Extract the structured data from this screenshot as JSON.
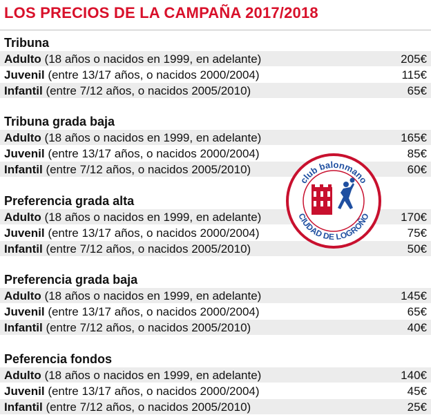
{
  "title": "LOS PRECIOS DE LA CAMPAÑA 2017/2018",
  "logo": {
    "text_top": "club balonmano",
    "text_bottom": "CIUDAD DE LOGROÑO"
  },
  "sections": [
    {
      "heading": "Tribuna",
      "rows": [
        {
          "label": "Adulto",
          "detail": " (18 años o nacidos en 1999, en adelante)",
          "price": "205€"
        },
        {
          "label": "Juvenil",
          "detail": " (entre 13/17 años, o nacidos 2000/2004)",
          "price": "115€"
        },
        {
          "label": "Infantil",
          "detail": " (entre 7/12 años, o nacidos 2005/2010)",
          "price": "65€"
        }
      ]
    },
    {
      "heading": "Tribuna grada baja",
      "rows": [
        {
          "label": "Adulto",
          "detail": " (18 años o nacidos en 1999, en adelante)",
          "price": "165€"
        },
        {
          "label": "Juvenil",
          "detail": " (entre 13/17 años, o nacidos 2000/2004)",
          "price": "85€"
        },
        {
          "label": "Infantil",
          "detail": " (entre 7/12 años, o nacidos 2005/2010)",
          "price": "60€"
        }
      ]
    },
    {
      "heading": "Preferencia grada alta",
      "rows": [
        {
          "label": "Adulto",
          "detail": " (18 años o nacidos en 1999, en adelante)",
          "price": "170€"
        },
        {
          "label": "Juvenil",
          "detail": " (entre 13/17 años, o nacidos 2000/2004)",
          "price": "75€"
        },
        {
          "label": "Infantil",
          "detail": " (entre 7/12 años, o nacidos 2005/2010)",
          "price": "50€"
        }
      ]
    },
    {
      "heading": "Preferencia grada baja",
      "rows": [
        {
          "label": "Adulto",
          "detail": " (18 años o nacidos en 1999, en adelante)",
          "price": "145€"
        },
        {
          "label": "Juvenil",
          "detail": " (entre 13/17 años, o nacidos 2000/2004)",
          "price": "65€"
        },
        {
          "label": "Infantil",
          "detail": " (entre 7/12 años, o nacidos 2005/2010)",
          "price": "40€"
        }
      ]
    },
    {
      "heading": "Peferencia fondos",
      "rows": [
        {
          "label": "Adulto",
          "detail": " (18 años o nacidos en 1999, en adelante)",
          "price": "140€"
        },
        {
          "label": "Juvenil",
          "detail": " (entre 13/17 años, o nacidos 2000/2004)",
          "price": "45€"
        },
        {
          "label": "Infantil",
          "detail": " (entre 7/12 años, o nacidos 2005/2010)",
          "price": "25€"
        }
      ]
    }
  ],
  "colors": {
    "title": "#d8102a",
    "row_shade": "#ececec",
    "logo_red": "#c8102e",
    "logo_blue": "#1f4fa0"
  }
}
